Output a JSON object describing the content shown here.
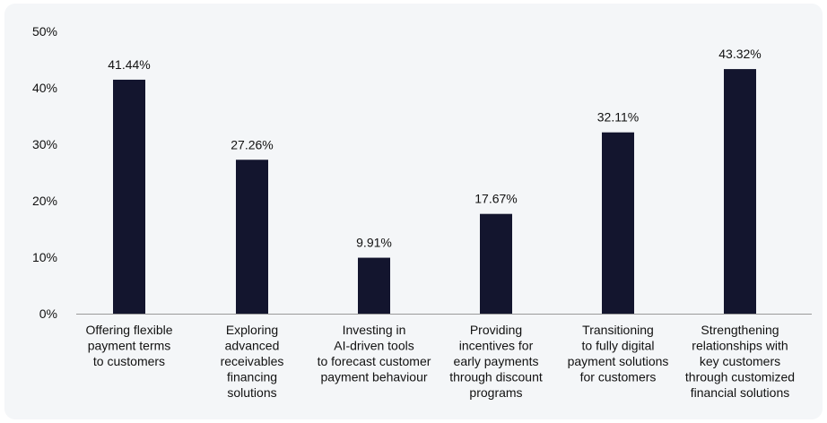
{
  "colors": {
    "bar": "#13152e",
    "background": "#f4f6f8",
    "axis": "#9a9a9a",
    "text": "#111111"
  },
  "chart_data": {
    "type": "bar",
    "title": "",
    "xlabel": "",
    "ylabel": "",
    "ylim": [
      0,
      50
    ],
    "grid": false,
    "yticks": [
      "0%",
      "10%",
      "20%",
      "30%",
      "40%",
      "50%"
    ],
    "categories": [
      [
        "Offering flexible",
        "payment terms",
        "to customers"
      ],
      [
        "Exploring",
        "advanced",
        "receivables",
        "financing",
        "solutions"
      ],
      [
        "Investing in",
        "AI-driven tools",
        "to forecast customer",
        "payment behaviour"
      ],
      [
        "Providing",
        "incentives for",
        "early payments",
        "through discount",
        "programs"
      ],
      [
        "Transitioning",
        "to fully digital",
        "payment solutions",
        "for customers"
      ],
      [
        "Strengthening",
        "relationships with",
        "key customers",
        "through customized",
        "financial solutions"
      ]
    ],
    "values": [
      41.44,
      27.26,
      9.91,
      17.67,
      32.11,
      43.32
    ],
    "value_labels": [
      "41.44%",
      "27.26%",
      "9.91%",
      "17.67%",
      "32.11%",
      "43.32%"
    ]
  }
}
